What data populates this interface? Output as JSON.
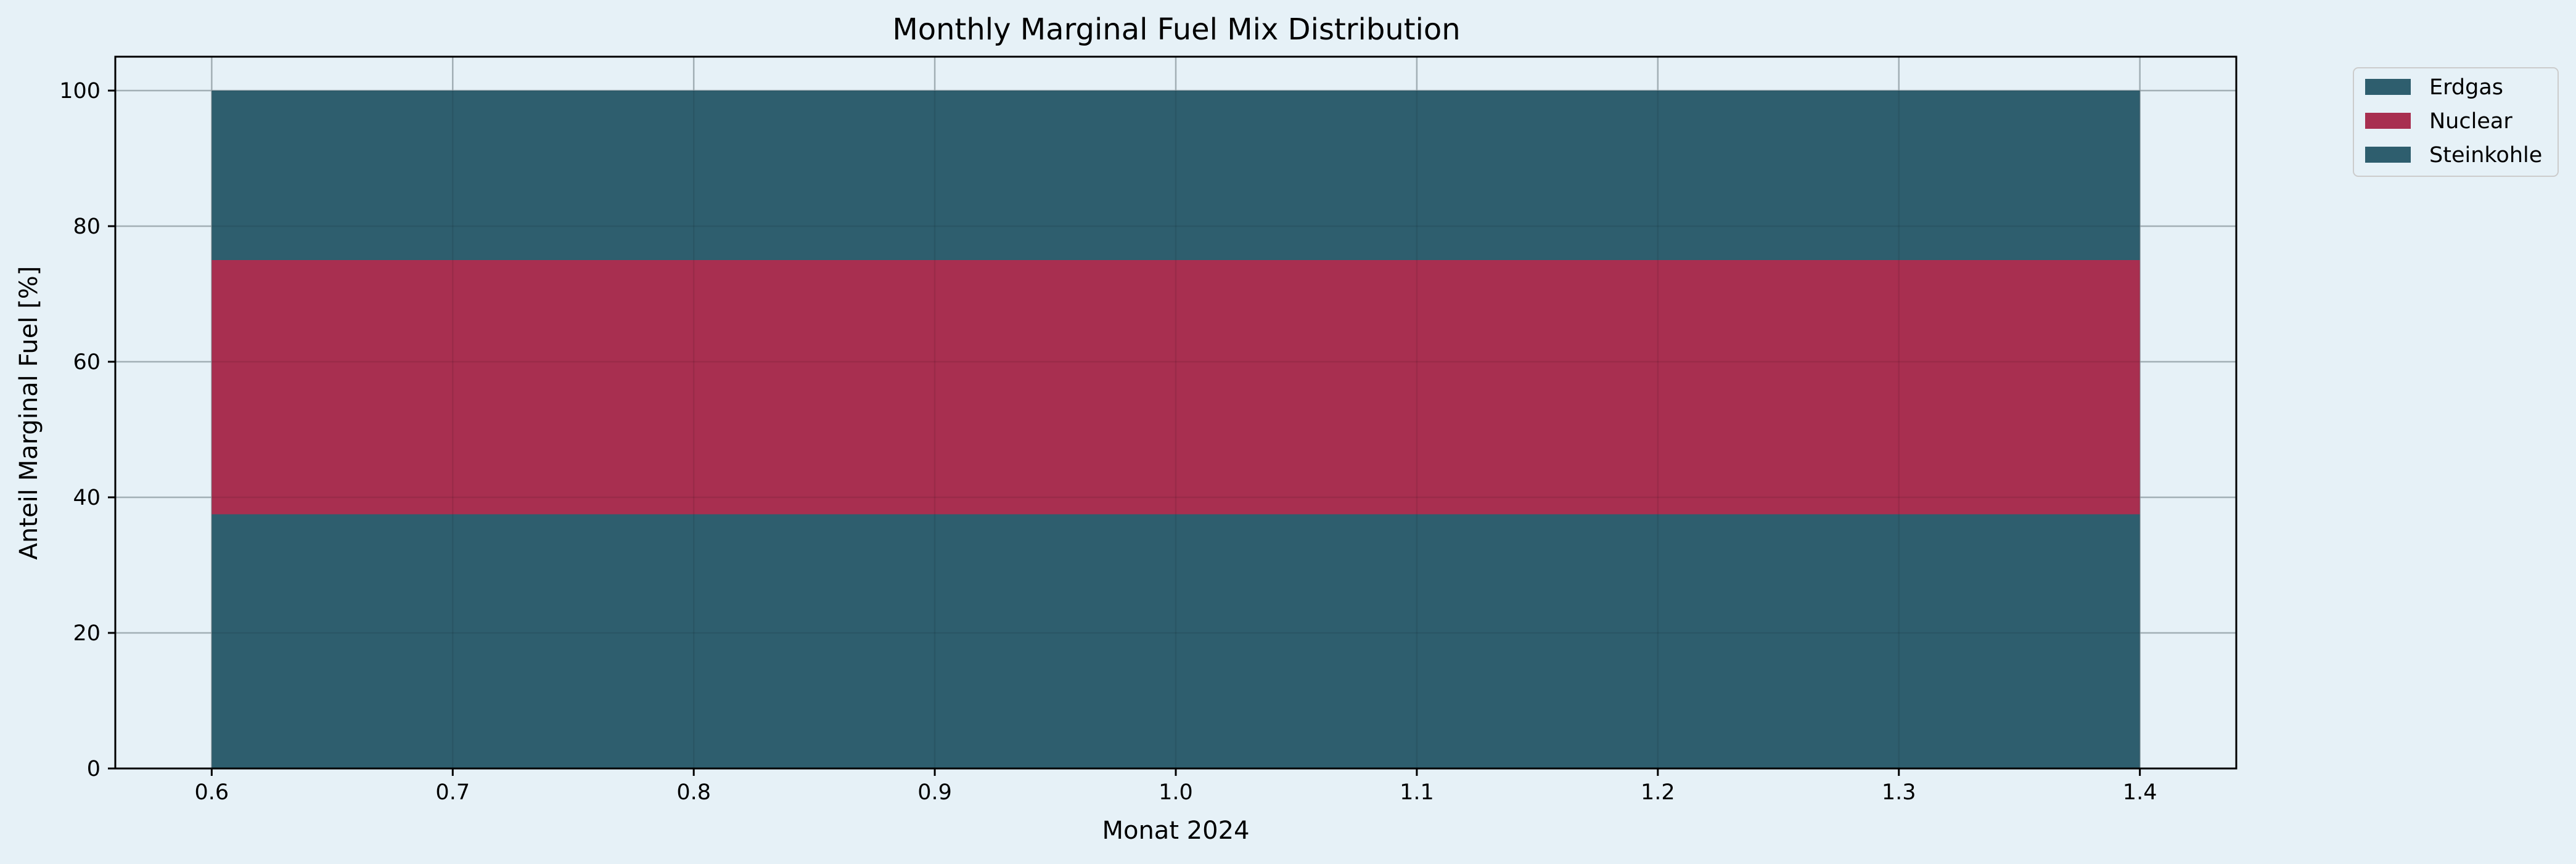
{
  "chart_data": {
    "type": "bar",
    "stacked": true,
    "title": "Monthly Marginal Fuel Mix Distribution",
    "xlabel": "Monat 2024",
    "ylabel": "Anteil Marginal Fuel [%]",
    "categories": [
      1.0
    ],
    "bar_width": 0.8,
    "xlim": [
      0.56,
      1.44
    ],
    "ylim": [
      0,
      105
    ],
    "xticks": [
      0.6,
      0.7,
      0.8,
      0.9,
      1.0,
      1.1,
      1.2,
      1.3,
      1.4
    ],
    "xtick_labels": [
      "0.6",
      "0.7",
      "0.8",
      "0.9",
      "1.0",
      "1.1",
      "1.2",
      "1.3",
      "1.4"
    ],
    "yticks": [
      0,
      20,
      40,
      60,
      80,
      100
    ],
    "ytick_labels": [
      "0",
      "20",
      "40",
      "60",
      "80",
      "100"
    ],
    "grid": true,
    "legend_position": "outside-top-right",
    "series": [
      {
        "name": "Erdgas",
        "values": [
          37.5
        ],
        "color": "#2e5e6e"
      },
      {
        "name": "Nuclear",
        "values": [
          37.5
        ],
        "color": "#a82f50"
      },
      {
        "name": "Steinkohle",
        "values": [
          25.0
        ],
        "color": "#2e5e6e"
      }
    ],
    "stack_order": [
      0,
      1,
      2
    ],
    "legend_order": [
      0,
      1,
      2
    ]
  }
}
